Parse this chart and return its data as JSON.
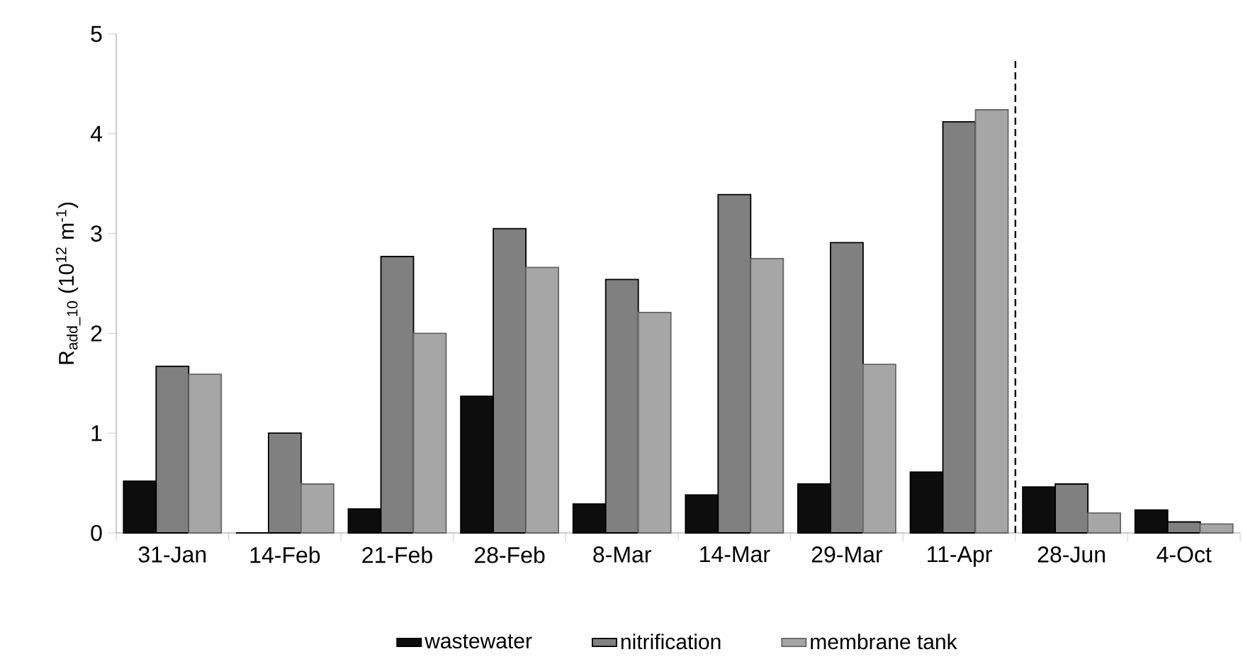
{
  "chart_data": {
    "type": "bar",
    "ylabel": "R$_{add_10}$ (10$^{12}$ m$^{-1}$)",
    "categories": [
      "31-Jan",
      "14-Feb",
      "21-Feb",
      "28-Feb",
      "8-Mar",
      "14-Mar",
      "29-Mar",
      "11-Apr",
      "28-Jun",
      "4-Oct"
    ],
    "series": [
      {
        "name": "wastewater",
        "color": "#0d0d0d",
        "values": [
          0.52,
          0,
          0.24,
          1.37,
          0.29,
          0.38,
          0.49,
          0.61,
          0.46,
          0.23
        ]
      },
      {
        "name": "nitrification",
        "color": "#808080",
        "values": [
          1.67,
          1.0,
          2.77,
          3.05,
          2.54,
          3.39,
          2.91,
          4.12,
          0.49,
          0.11
        ]
      },
      {
        "name": "membrane tank",
        "color": "#a6a6a6",
        "values": [
          1.59,
          0.49,
          2.0,
          2.66,
          2.21,
          2.75,
          1.69,
          4.24,
          0.2,
          0.09
        ]
      }
    ],
    "ylim": [
      0,
      5
    ],
    "yticks": [
      0,
      1,
      2,
      3,
      4,
      5
    ],
    "grid": false,
    "legend": "bottom"
  }
}
